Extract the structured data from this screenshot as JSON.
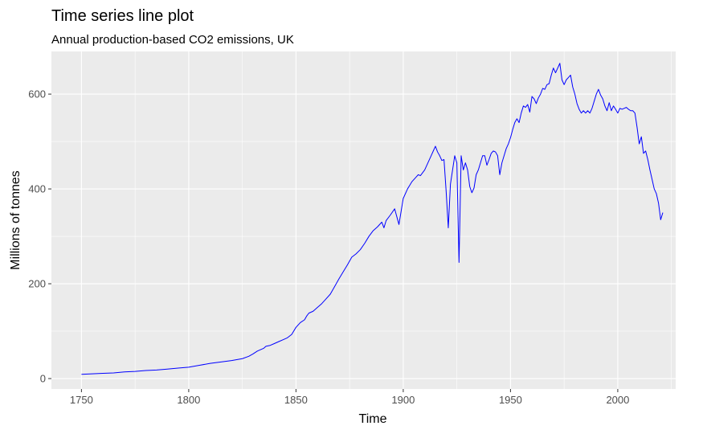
{
  "chart_data": {
    "type": "line",
    "title": "Time series line plot",
    "subtitle": "Annual production-based CO2 emissions, UK",
    "xlabel": "Time",
    "ylabel": "Millions of tonnes",
    "xlim": [
      1736,
      2027
    ],
    "ylim": [
      -22,
      690
    ],
    "x_ticks": [
      1750,
      1800,
      1850,
      1900,
      1950,
      2000
    ],
    "y_ticks": [
      0,
      200,
      400,
      600
    ],
    "grid": true,
    "legend": "none",
    "series_color": "#0000ff",
    "panel_background": "#ebebeb",
    "x": [
      1750,
      1755,
      1760,
      1765,
      1770,
      1775,
      1780,
      1785,
      1790,
      1795,
      1800,
      1805,
      1810,
      1815,
      1820,
      1825,
      1828,
      1830,
      1832,
      1835,
      1836,
      1838,
      1840,
      1842,
      1844,
      1846,
      1848,
      1850,
      1852,
      1854,
      1855,
      1856,
      1858,
      1860,
      1862,
      1864,
      1866,
      1868,
      1870,
      1872,
      1874,
      1876,
      1878,
      1880,
      1882,
      1884,
      1886,
      1888,
      1890,
      1891,
      1892,
      1894,
      1896,
      1898,
      1900,
      1902,
      1904,
      1906,
      1907,
      1908,
      1910,
      1912,
      1913,
      1914,
      1915,
      1916,
      1917,
      1918,
      1919,
      1920,
      1921,
      1922,
      1923,
      1924,
      1925,
      1926,
      1927,
      1928,
      1929,
      1930,
      1931,
      1932,
      1933,
      1934,
      1935,
      1936,
      1937,
      1938,
      1939,
      1940,
      1941,
      1942,
      1943,
      1944,
      1945,
      1946,
      1947,
      1948,
      1949,
      1950,
      1951,
      1952,
      1953,
      1954,
      1955,
      1956,
      1957,
      1958,
      1959,
      1960,
      1961,
      1962,
      1963,
      1964,
      1965,
      1966,
      1967,
      1968,
      1969,
      1970,
      1971,
      1972,
      1973,
      1974,
      1975,
      1976,
      1977,
      1978,
      1979,
      1980,
      1981,
      1982,
      1983,
      1984,
      1985,
      1986,
      1987,
      1988,
      1989,
      1990,
      1991,
      1992,
      1993,
      1994,
      1995,
      1996,
      1997,
      1998,
      1999,
      2000,
      2001,
      2002,
      2003,
      2004,
      2005,
      2006,
      2007,
      2008,
      2009,
      2010,
      2011,
      2012,
      2013,
      2014,
      2015,
      2016,
      2017,
      2018,
      2019,
      2020,
      2021
    ],
    "y": [
      9,
      10,
      11,
      12,
      14,
      15,
      17,
      18,
      20,
      22,
      24,
      28,
      32,
      35,
      38,
      42,
      47,
      52,
      58,
      64,
      68,
      70,
      74,
      78,
      82,
      86,
      93,
      108,
      118,
      124,
      132,
      138,
      142,
      150,
      158,
      168,
      178,
      194,
      210,
      225,
      240,
      256,
      263,
      272,
      285,
      300,
      312,
      320,
      330,
      318,
      333,
      345,
      358,
      325,
      380,
      400,
      415,
      425,
      430,
      428,
      440,
      460,
      470,
      480,
      490,
      478,
      470,
      460,
      462,
      395,
      318,
      410,
      440,
      470,
      455,
      245,
      470,
      440,
      455,
      440,
      405,
      392,
      402,
      430,
      440,
      455,
      470,
      470,
      450,
      462,
      475,
      480,
      478,
      470,
      430,
      455,
      470,
      485,
      495,
      508,
      525,
      540,
      548,
      540,
      560,
      575,
      572,
      578,
      562,
      595,
      590,
      580,
      592,
      600,
      612,
      610,
      620,
      622,
      640,
      655,
      645,
      655,
      665,
      630,
      620,
      630,
      635,
      640,
      615,
      600,
      580,
      568,
      560,
      565,
      560,
      565,
      560,
      570,
      585,
      600,
      610,
      598,
      590,
      575,
      565,
      582,
      565,
      575,
      568,
      560,
      570,
      568,
      570,
      572,
      568,
      565,
      565,
      560,
      530,
      495,
      510,
      475,
      480,
      462,
      440,
      420,
      400,
      390,
      370,
      335,
      350
    ]
  }
}
